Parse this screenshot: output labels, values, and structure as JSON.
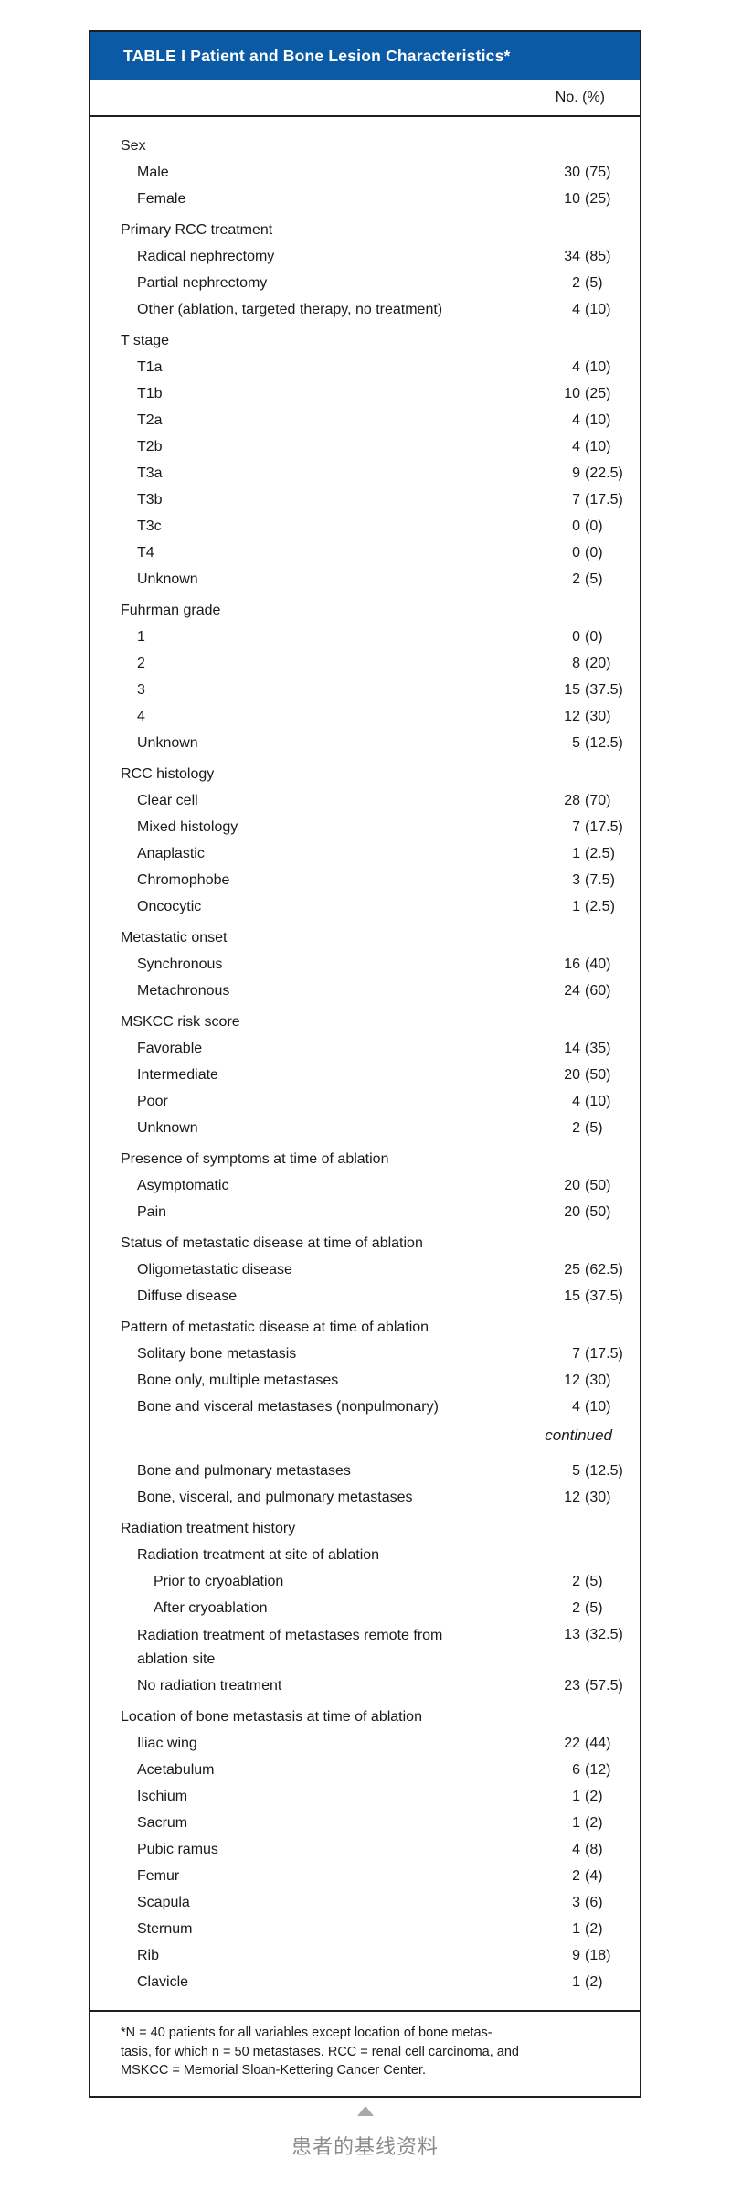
{
  "colors": {
    "header_blue": "#0b5aa5",
    "border": "#1f1f1f",
    "text": "#1a1a1a",
    "caption_gray": "#8b8b8b"
  },
  "table": {
    "title": "TABLE I Patient and Bone Lesion Characteristics*",
    "column_header": "No. (%)",
    "rows": [
      {
        "type": "section",
        "indent": 0,
        "label": "Sex"
      },
      {
        "type": "item",
        "indent": 1,
        "label": "Male",
        "num": "30",
        "pct": "(75)"
      },
      {
        "type": "item",
        "indent": 1,
        "label": "Female",
        "num": "10",
        "pct": "(25)"
      },
      {
        "type": "section",
        "indent": 0,
        "label": "Primary RCC treatment"
      },
      {
        "type": "item",
        "indent": 1,
        "label": "Radical nephrectomy",
        "num": "34",
        "pct": "(85)"
      },
      {
        "type": "item",
        "indent": 1,
        "label": "Partial nephrectomy",
        "num": "2",
        "pct": "(5)"
      },
      {
        "type": "item",
        "indent": 1,
        "label": "Other (ablation, targeted therapy, no treatment)",
        "num": "4",
        "pct": "(10)"
      },
      {
        "type": "section",
        "indent": 0,
        "label": "T stage"
      },
      {
        "type": "item",
        "indent": 1,
        "label": "T1a",
        "num": "4",
        "pct": "(10)"
      },
      {
        "type": "item",
        "indent": 1,
        "label": "T1b",
        "num": "10",
        "pct": "(25)"
      },
      {
        "type": "item",
        "indent": 1,
        "label": "T2a",
        "num": "4",
        "pct": "(10)"
      },
      {
        "type": "item",
        "indent": 1,
        "label": "T2b",
        "num": "4",
        "pct": "(10)"
      },
      {
        "type": "item",
        "indent": 1,
        "label": "T3a",
        "num": "9",
        "pct": "(22.5)"
      },
      {
        "type": "item",
        "indent": 1,
        "label": "T3b",
        "num": "7",
        "pct": "(17.5)"
      },
      {
        "type": "item",
        "indent": 1,
        "label": "T3c",
        "num": "0",
        "pct": "(0)"
      },
      {
        "type": "item",
        "indent": 1,
        "label": "T4",
        "num": "0",
        "pct": "(0)"
      },
      {
        "type": "item",
        "indent": 1,
        "label": "Unknown",
        "num": "2",
        "pct": "(5)"
      },
      {
        "type": "section",
        "indent": 0,
        "label": "Fuhrman grade"
      },
      {
        "type": "item",
        "indent": 1,
        "label": "1",
        "num": "0",
        "pct": "(0)"
      },
      {
        "type": "item",
        "indent": 1,
        "label": "2",
        "num": "8",
        "pct": "(20)"
      },
      {
        "type": "item",
        "indent": 1,
        "label": "3",
        "num": "15",
        "pct": "(37.5)"
      },
      {
        "type": "item",
        "indent": 1,
        "label": "4",
        "num": "12",
        "pct": "(30)"
      },
      {
        "type": "item",
        "indent": 1,
        "label": "Unknown",
        "num": "5",
        "pct": "(12.5)"
      },
      {
        "type": "section",
        "indent": 0,
        "label": "RCC histology"
      },
      {
        "type": "item",
        "indent": 1,
        "label": "Clear cell",
        "num": "28",
        "pct": "(70)"
      },
      {
        "type": "item",
        "indent": 1,
        "label": "Mixed histology",
        "num": "7",
        "pct": "(17.5)"
      },
      {
        "type": "item",
        "indent": 1,
        "label": "Anaplastic",
        "num": "1",
        "pct": "(2.5)"
      },
      {
        "type": "item",
        "indent": 1,
        "label": "Chromophobe",
        "num": "3",
        "pct": "(7.5)"
      },
      {
        "type": "item",
        "indent": 1,
        "label": "Oncocytic",
        "num": "1",
        "pct": "(2.5)"
      },
      {
        "type": "section",
        "indent": 0,
        "label": "Metastatic onset"
      },
      {
        "type": "item",
        "indent": 1,
        "label": "Synchronous",
        "num": "16",
        "pct": "(40)"
      },
      {
        "type": "item",
        "indent": 1,
        "label": "Metachronous",
        "num": "24",
        "pct": "(60)"
      },
      {
        "type": "section",
        "indent": 0,
        "label": "MSKCC risk score"
      },
      {
        "type": "item",
        "indent": 1,
        "label": "Favorable",
        "num": "14",
        "pct": "(35)"
      },
      {
        "type": "item",
        "indent": 1,
        "label": "Intermediate",
        "num": "20",
        "pct": "(50)"
      },
      {
        "type": "item",
        "indent": 1,
        "label": "Poor",
        "num": "4",
        "pct": "(10)"
      },
      {
        "type": "item",
        "indent": 1,
        "label": "Unknown",
        "num": "2",
        "pct": "(5)"
      },
      {
        "type": "section",
        "indent": 0,
        "label": "Presence of symptoms at time of ablation"
      },
      {
        "type": "item",
        "indent": 1,
        "label": "Asymptomatic",
        "num": "20",
        "pct": "(50)"
      },
      {
        "type": "item",
        "indent": 1,
        "label": "Pain",
        "num": "20",
        "pct": "(50)"
      },
      {
        "type": "section",
        "indent": 0,
        "label": "Status of metastatic disease at time of ablation"
      },
      {
        "type": "item",
        "indent": 1,
        "label": "Oligometastatic disease",
        "num": "25",
        "pct": "(62.5)"
      },
      {
        "type": "item",
        "indent": 1,
        "label": "Diffuse disease",
        "num": "15",
        "pct": "(37.5)"
      },
      {
        "type": "section",
        "indent": 0,
        "label": "Pattern of metastatic disease at time of ablation"
      },
      {
        "type": "item",
        "indent": 1,
        "label": "Solitary bone metastasis",
        "num": "7",
        "pct": "(17.5)"
      },
      {
        "type": "item",
        "indent": 1,
        "label": "Bone only, multiple metastases",
        "num": "12",
        "pct": "(30)"
      },
      {
        "type": "item",
        "indent": 1,
        "label": "Bone and visceral metastases (nonpulmonary)",
        "num": "4",
        "pct": "(10)"
      },
      {
        "type": "continued",
        "indent": 0,
        "label": "continued"
      },
      {
        "type": "item",
        "indent": 1,
        "label": "Bone and pulmonary metastases",
        "num": "5",
        "pct": "(12.5)"
      },
      {
        "type": "item",
        "indent": 1,
        "label": "Bone, visceral, and pulmonary metastases",
        "num": "12",
        "pct": "(30)"
      },
      {
        "type": "section",
        "indent": 0,
        "label": "Radiation treatment history"
      },
      {
        "type": "subheader",
        "indent": 1,
        "label": "Radiation treatment at site of ablation"
      },
      {
        "type": "item",
        "indent": 2,
        "label": "Prior to cryoablation",
        "num": "2",
        "pct": "(5)"
      },
      {
        "type": "item",
        "indent": 2,
        "label": "After cryoablation",
        "num": "2",
        "pct": "(5)"
      },
      {
        "type": "item",
        "indent": 1,
        "wrap": true,
        "label": "Radiation treatment of metastases remote from ablation site",
        "num": "13",
        "pct": "(32.5)"
      },
      {
        "type": "item",
        "indent": 1,
        "label": "No radiation treatment",
        "num": "23",
        "pct": "(57.5)"
      },
      {
        "type": "section",
        "indent": 0,
        "label": "Location of bone metastasis at time of ablation"
      },
      {
        "type": "item",
        "indent": 1,
        "label": "Iliac wing",
        "num": "22",
        "pct": "(44)"
      },
      {
        "type": "item",
        "indent": 1,
        "label": "Acetabulum",
        "num": "6",
        "pct": "(12)"
      },
      {
        "type": "item",
        "indent": 1,
        "label": "Ischium",
        "num": "1",
        "pct": "(2)"
      },
      {
        "type": "item",
        "indent": 1,
        "label": "Sacrum",
        "num": "1",
        "pct": "(2)"
      },
      {
        "type": "item",
        "indent": 1,
        "label": "Pubic ramus",
        "num": "4",
        "pct": "(8)"
      },
      {
        "type": "item",
        "indent": 1,
        "label": "Femur",
        "num": "2",
        "pct": "(4)"
      },
      {
        "type": "item",
        "indent": 1,
        "label": "Scapula",
        "num": "3",
        "pct": "(6)"
      },
      {
        "type": "item",
        "indent": 1,
        "label": "Sternum",
        "num": "1",
        "pct": "(2)"
      },
      {
        "type": "item",
        "indent": 1,
        "label": "Rib",
        "num": "9",
        "pct": "(18)"
      },
      {
        "type": "item",
        "indent": 1,
        "label": "Clavicle",
        "num": "1",
        "pct": "(2)"
      }
    ],
    "footnote_lines": [
      "*N = 40 patients for all variables except location of bone metas-",
      "tasis, for which n = 50 metastases. RCC = renal cell carcinoma, and",
      "MSKCC = Memorial Sloan-Kettering Cancer Center."
    ]
  },
  "caption": {
    "pointer_icon": "triangle-up",
    "text": "患者的基线资料"
  }
}
